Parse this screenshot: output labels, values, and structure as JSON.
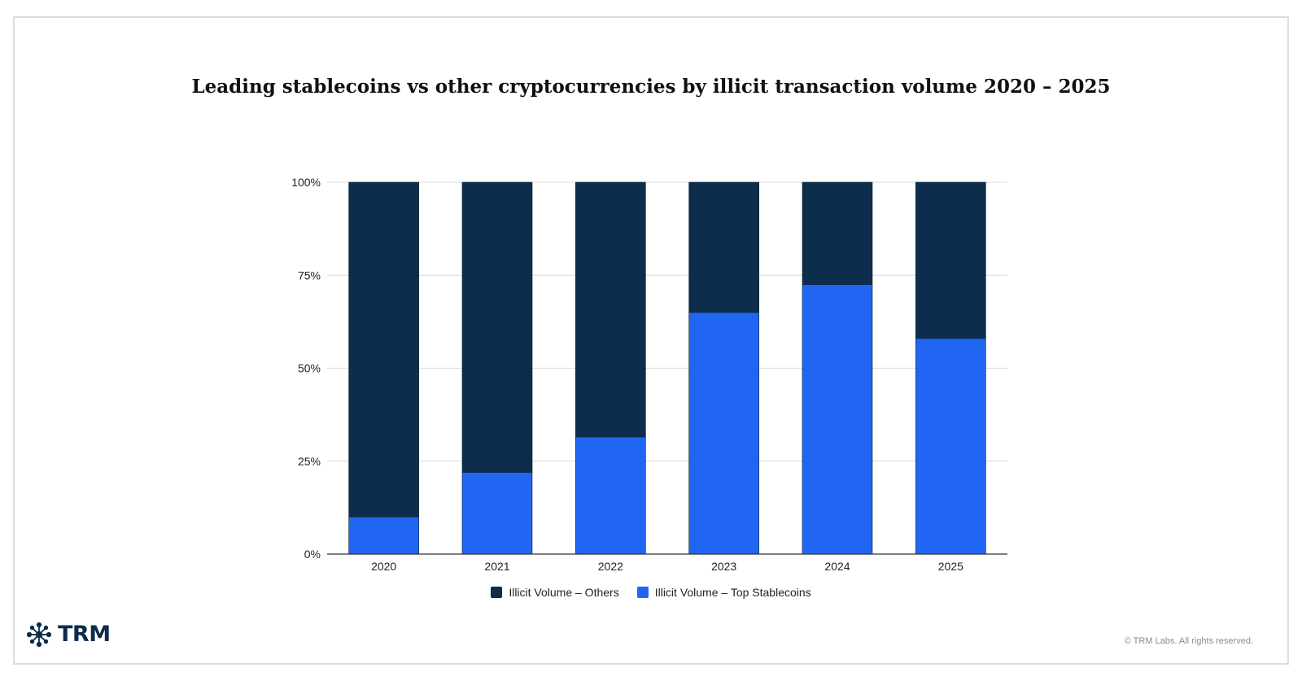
{
  "chart_data": {
    "type": "bar",
    "stacked": true,
    "title": "Leading stablecoins vs other cryptocurrencies by illicit transaction volume 2020 – 2025",
    "categories": [
      "2020",
      "2021",
      "2022",
      "2023",
      "2024",
      "2025"
    ],
    "series": [
      {
        "name": "Illicit Volume – Top Stablecoins",
        "color": "#2166f3",
        "values": [
          10,
          22,
          31.5,
          65,
          72.5,
          58
        ]
      },
      {
        "name": "Illicit Volume – Others",
        "color": "#0c2d4c",
        "values": [
          90,
          78,
          68.5,
          35,
          27.5,
          42
        ]
      }
    ],
    "ylim": [
      0,
      100
    ],
    "yticks": [
      {
        "value": 0,
        "label": "0%"
      },
      {
        "value": 25,
        "label": "25%"
      },
      {
        "value": 50,
        "label": "50%"
      },
      {
        "value": 75,
        "label": "75%"
      },
      {
        "value": 100,
        "label": "100%"
      }
    ],
    "xlabel": "",
    "ylabel": "",
    "grid": true,
    "legend_position": "bottom",
    "legend": [
      {
        "label": "Illicit Volume – Others",
        "color": "#0c2d4c"
      },
      {
        "label": "Illicit Volume – Top Stablecoins",
        "color": "#2166f3"
      }
    ]
  },
  "brand": {
    "name": "TRM",
    "color": "#0d2b4b"
  },
  "footer": {
    "copyright": "© TRM Labs. All rights reserved."
  }
}
